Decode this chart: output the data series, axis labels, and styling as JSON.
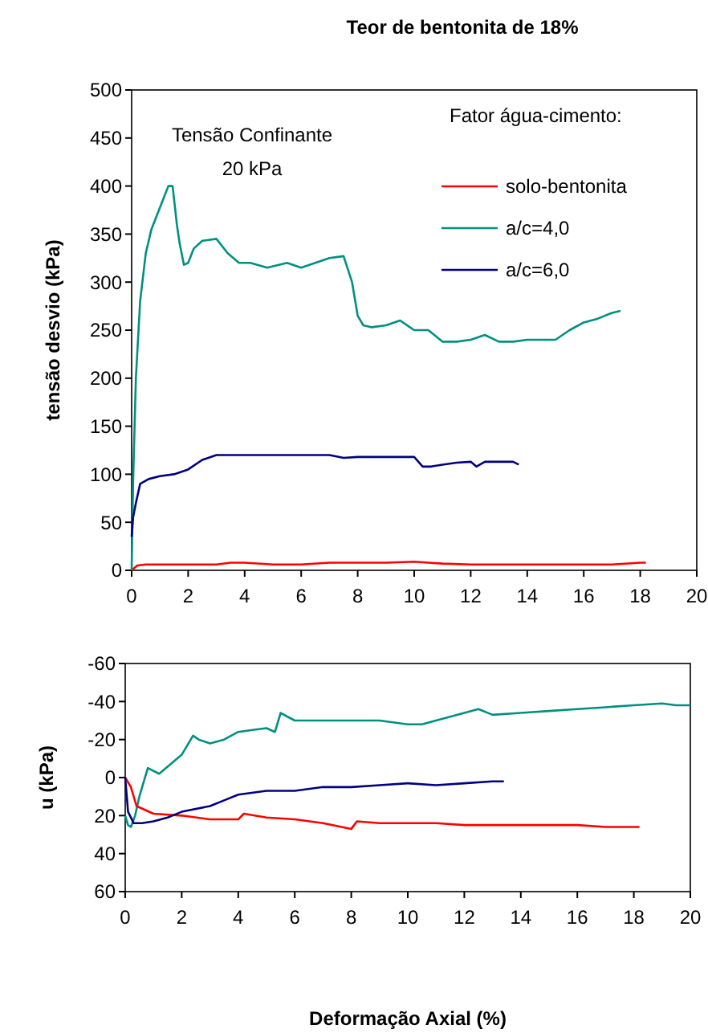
{
  "chart_data": [
    {
      "type": "line",
      "title": "Teor de bentonita de 18%",
      "ylabel": "tensão desvio (kPa)",
      "legend_title": "Fator água-cimento:",
      "legend": "top right",
      "annotations": [
        "Tensão Confinante\n20 kPa"
      ],
      "xlim": [
        0,
        20
      ],
      "xticks": [
        0,
        2,
        4,
        6,
        8,
        10,
        12,
        14,
        16,
        18,
        20
      ],
      "ylim": [
        0,
        500
      ],
      "yticks": [
        0,
        50,
        100,
        150,
        200,
        250,
        300,
        350,
        400,
        450,
        500
      ],
      "series": [
        {
          "name": "solo-bentonita",
          "color": "#ff0000",
          "x": [
            0,
            0.2,
            0.5,
            1,
            2,
            3,
            3.5,
            4,
            5,
            6,
            7,
            8,
            9,
            10,
            10.5,
            11,
            12,
            13,
            14,
            15,
            16,
            17,
            18,
            18.2
          ],
          "values": [
            0,
            5,
            6,
            6,
            6,
            6,
            8,
            8,
            6,
            6,
            8,
            8,
            8,
            9,
            8,
            7,
            6,
            6,
            6,
            6,
            6,
            6,
            8,
            8
          ]
        },
        {
          "name": "a/c=4,0",
          "color": "#009080",
          "x": [
            0,
            0.05,
            0.15,
            0.3,
            0.5,
            0.7,
            0.9,
            1.1,
            1.3,
            1.45,
            1.6,
            1.7,
            1.85,
            2.0,
            2.2,
            2.5,
            3.0,
            3.4,
            3.8,
            4.2,
            4.8,
            5.5,
            6.0,
            6.5,
            7.0,
            7.5,
            7.8,
            8.0,
            8.2,
            8.5,
            9.0,
            9.5,
            10.0,
            10.5,
            11.0,
            11.5,
            12.0,
            12.5,
            13.0,
            13.5,
            14.0,
            14.5,
            15.0,
            15.5,
            16.0,
            16.5,
            17.0,
            17.3
          ],
          "values": [
            0,
            90,
            200,
            280,
            330,
            355,
            370,
            385,
            400,
            400,
            360,
            340,
            318,
            320,
            335,
            343,
            345,
            330,
            320,
            320,
            315,
            320,
            315,
            320,
            325,
            327,
            300,
            265,
            255,
            253,
            255,
            260,
            250,
            250,
            238,
            238,
            240,
            245,
            238,
            238,
            240,
            240,
            240,
            250,
            258,
            262,
            268,
            270
          ]
        },
        {
          "name": "a/c=6,0",
          "color": "#000080",
          "x": [
            0,
            0.05,
            0.15,
            0.3,
            0.6,
            1,
            1.5,
            2,
            2.5,
            3,
            4,
            5,
            6,
            7,
            7.5,
            8,
            9,
            10,
            10.3,
            10.6,
            11,
            11.5,
            12,
            12.2,
            12.5,
            13,
            13.5,
            13.7
          ],
          "values": [
            35,
            55,
            70,
            90,
            95,
            98,
            100,
            105,
            115,
            120,
            120,
            120,
            120,
            120,
            117,
            118,
            118,
            118,
            108,
            108,
            110,
            112,
            113,
            108,
            113,
            113,
            113,
            110
          ]
        }
      ]
    },
    {
      "type": "line",
      "ylabel": "u (kPa)",
      "xlabel": "Deformação Axial (%)",
      "xlim": [
        0,
        20
      ],
      "xticks": [
        0,
        2,
        4,
        6,
        8,
        10,
        12,
        14,
        16,
        18,
        20
      ],
      "ylim": [
        60,
        -60
      ],
      "yticks": [
        -60,
        -40,
        -20,
        0,
        20,
        40,
        60
      ],
      "series": [
        {
          "color": "#009080",
          "x": [
            0,
            0.1,
            0.2,
            0.35,
            0.5,
            0.8,
            1.2,
            1.6,
            2,
            2.4,
            2.6,
            3,
            3.5,
            4,
            4.5,
            5,
            5.3,
            5.5,
            6,
            7,
            8,
            9,
            10,
            10.5,
            11,
            12,
            12.5,
            13,
            14,
            15,
            16,
            17,
            18,
            19,
            19.5,
            20
          ],
          "values": [
            20,
            25,
            26,
            20,
            10,
            -5,
            -2,
            -7,
            -12,
            -22,
            -20,
            -18,
            -20,
            -24,
            -25,
            -26,
            -24,
            -34,
            -30,
            -30,
            -30,
            -30,
            -28,
            -28,
            -30,
            -34,
            -36,
            -33,
            -34,
            -35,
            -36,
            -37,
            -38,
            -39,
            -38,
            -38
          ]
        },
        {
          "color": "#ff0000",
          "x": [
            0,
            0.2,
            0.4,
            0.7,
            1,
            2,
            3,
            4,
            4.2,
            5,
            6,
            7,
            8,
            8.2,
            9,
            10,
            11,
            12,
            13,
            14,
            15,
            16,
            17,
            18,
            18.2
          ],
          "values": [
            0,
            5,
            15,
            17,
            19,
            20,
            22,
            22,
            19,
            21,
            22,
            24,
            27,
            23,
            24,
            24,
            24,
            25,
            25,
            25,
            25,
            25,
            26,
            26,
            26
          ]
        },
        {
          "color": "#000080",
          "x": [
            0,
            0.1,
            0.3,
            0.6,
            1,
            1.5,
            2,
            3,
            3.5,
            4,
            5,
            6,
            7,
            8,
            9,
            10,
            11,
            12,
            13,
            13.4
          ],
          "values": [
            0,
            18,
            24,
            24,
            23,
            21,
            18,
            15,
            12,
            9,
            7,
            7,
            5,
            5,
            4,
            3,
            4,
            3,
            2,
            2
          ]
        }
      ]
    }
  ]
}
